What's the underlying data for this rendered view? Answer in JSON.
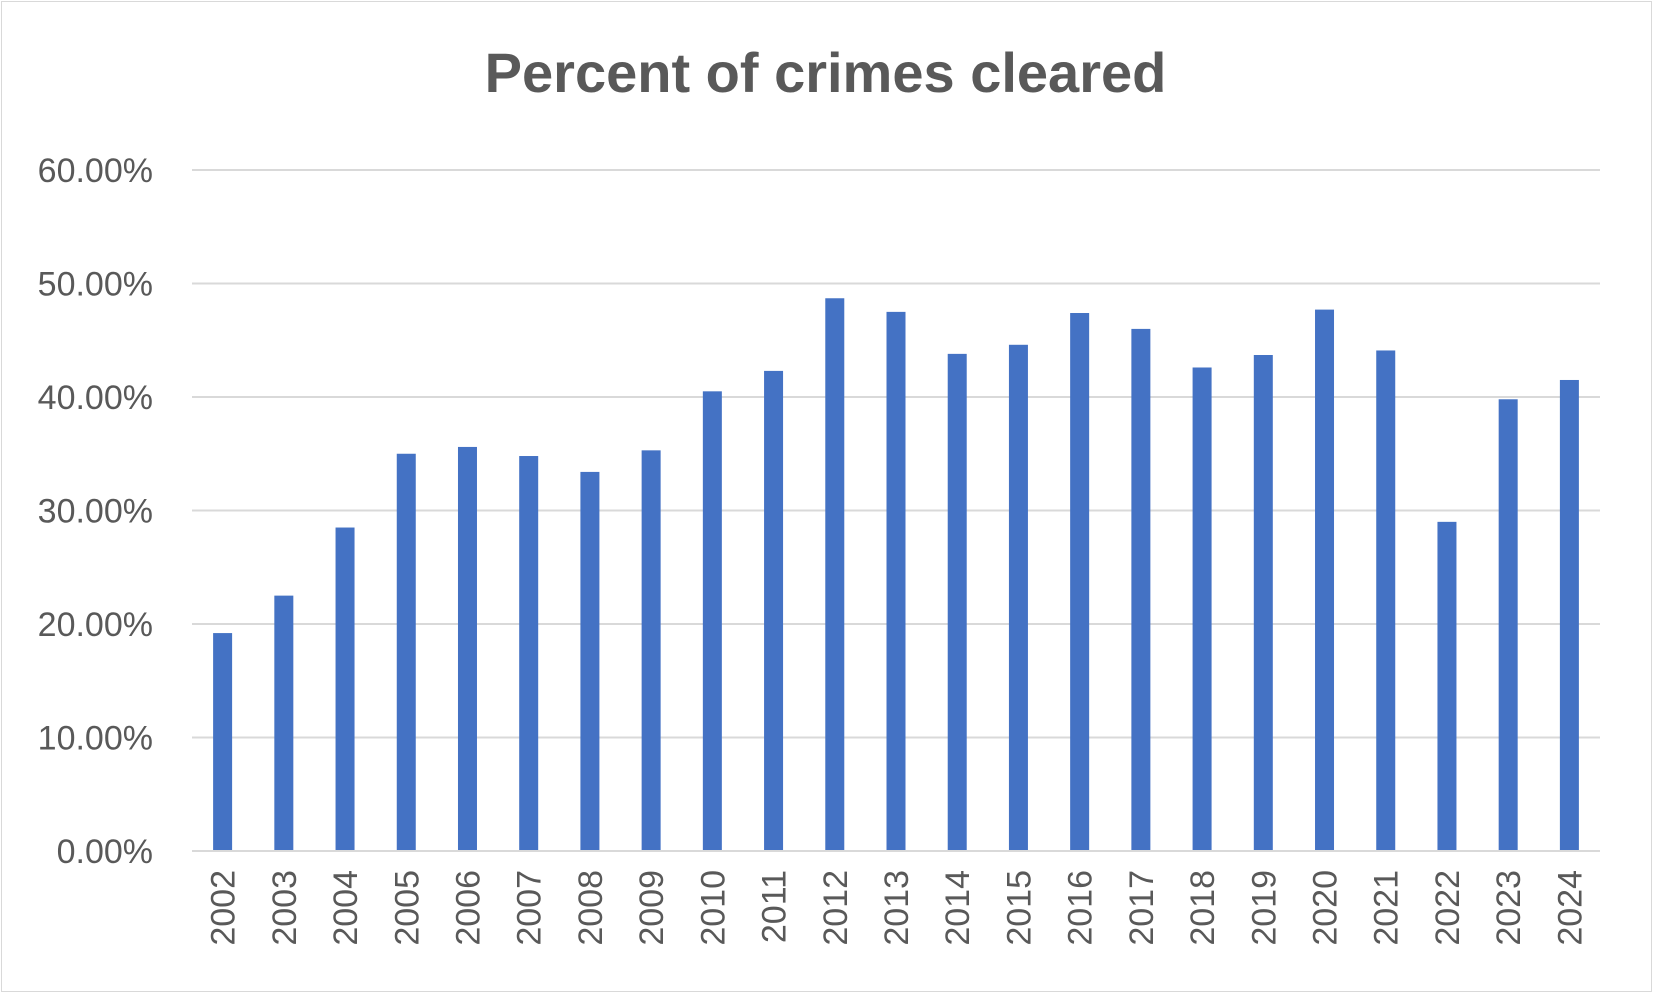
{
  "chart_data": {
    "type": "bar",
    "title": "Percent of crimes cleared",
    "xlabel": "",
    "ylabel": "",
    "categories": [
      "2002",
      "2003",
      "2004",
      "2005",
      "2006",
      "2007",
      "2008",
      "2009",
      "2010",
      "2011",
      "2012",
      "2013",
      "2014",
      "2015",
      "2016",
      "2017",
      "2018",
      "2019",
      "2020",
      "2021",
      "2022",
      "2023",
      "2024"
    ],
    "values": [
      0.192,
      0.225,
      0.285,
      0.35,
      0.356,
      0.348,
      0.334,
      0.353,
      0.405,
      0.423,
      0.487,
      0.475,
      0.438,
      0.446,
      0.474,
      0.46,
      0.426,
      0.437,
      0.477,
      0.441,
      0.29,
      0.398,
      0.415
    ],
    "ylim": [
      0,
      0.6
    ],
    "y_ticks": [
      "0.00%",
      "10.00%",
      "20.00%",
      "30.00%",
      "40.00%",
      "50.00%",
      "60.00%"
    ],
    "y_tick_values": [
      0,
      0.1,
      0.2,
      0.3,
      0.4,
      0.5,
      0.6
    ],
    "grid": true,
    "legend": "none",
    "bar_color": "#4472C4",
    "grid_color": "#d9d9d9"
  }
}
